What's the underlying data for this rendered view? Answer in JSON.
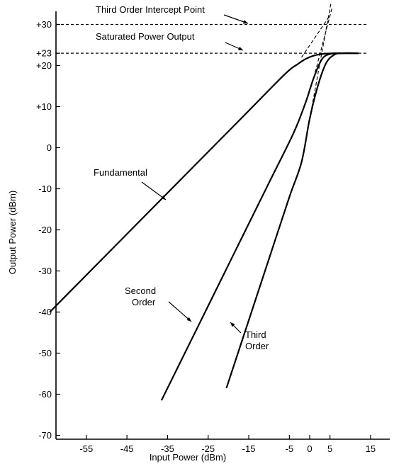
{
  "chart_data": {
    "type": "line",
    "xlabel": "Input Power (dBm)",
    "ylabel": "Output Power (dBm)",
    "xlim": [
      -64,
      17
    ],
    "ylim": [
      -72,
      33
    ],
    "x_ticks": [
      -55,
      -45,
      -35,
      -25,
      -15,
      -5,
      0,
      5,
      15
    ],
    "x_tick_labels": [
      "-55",
      "-45",
      "-35",
      "-25",
      "-15",
      "-5",
      "0",
      "5",
      "15"
    ],
    "y_ticks": [
      30,
      23,
      20,
      10,
      0,
      -10,
      -20,
      -30,
      -40,
      -50,
      -60,
      -70
    ],
    "y_tick_labels": [
      "+30",
      "+23",
      "+20",
      "+10",
      "0",
      "-10",
      "-20",
      "-30",
      "-40",
      "-50",
      "-60",
      "-70"
    ],
    "reference_lines": [
      {
        "y": 30,
        "label": "Third Order Intercept Point"
      },
      {
        "y": 23,
        "label": "Saturated Power Output"
      }
    ],
    "series": [
      {
        "name": "Fundamental",
        "x": [
          -64,
          -56,
          -46,
          -36,
          -26,
          -16,
          -6,
          -3,
          -1,
          1,
          3,
          5,
          7,
          9,
          12
        ],
        "y": [
          -40,
          -32,
          -22,
          -12,
          -2,
          8,
          18,
          20.3,
          21.6,
          22.4,
          22.8,
          22.95,
          23,
          23,
          23
        ]
      },
      {
        "name": "Second Order",
        "x": [
          -36.5,
          -30,
          -20,
          -10,
          -4,
          -1,
          1,
          3,
          5,
          8,
          12
        ],
        "y": [
          -61.5,
          -48.5,
          -28.5,
          -8.5,
          3.5,
          11,
          17,
          21.5,
          22.8,
          23,
          23
        ]
      },
      {
        "name": "Third Order",
        "x": [
          -20.5,
          -15,
          -10,
          -5,
          -2,
          0,
          2,
          4,
          6,
          8,
          12
        ],
        "y": [
          -58.5,
          -42,
          -27,
          -12,
          -3.5,
          7,
          15,
          20.5,
          22.6,
          23,
          23
        ]
      }
    ],
    "annotations": [
      {
        "text": "Fundamental"
      },
      {
        "text": "Second\nOrder"
      },
      {
        "text": "Third\nOrder"
      }
    ]
  }
}
